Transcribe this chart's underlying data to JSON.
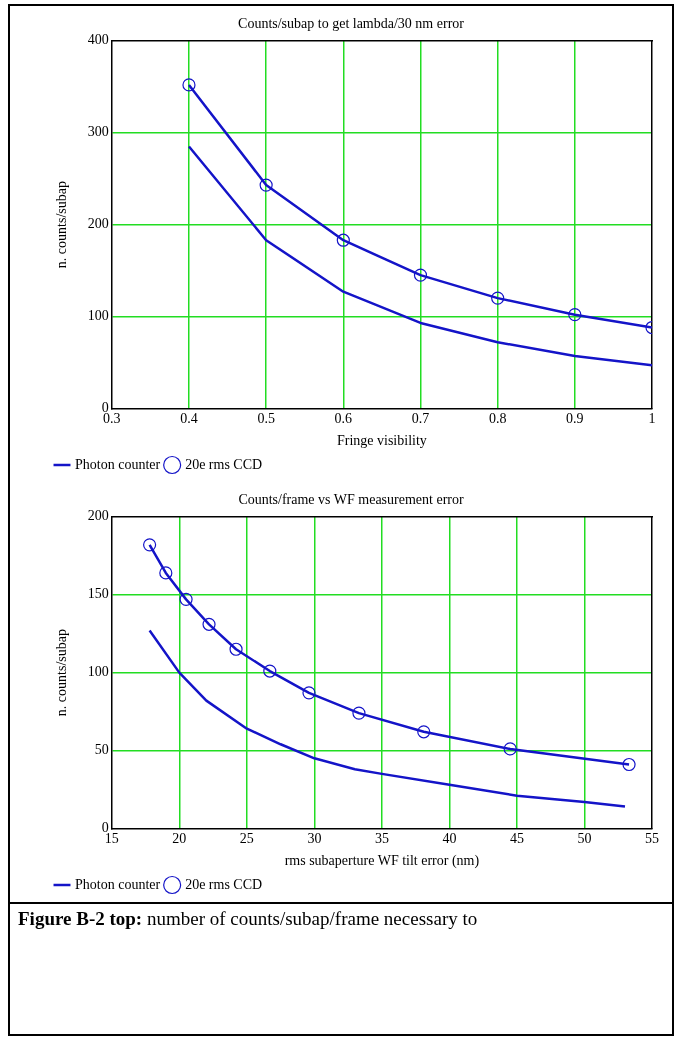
{
  "chart_data": [
    {
      "type": "line",
      "title": "Counts/subap to get lambda/30 nm error",
      "xlabel": "Fringe visibility",
      "ylabel": "n. counts/subap",
      "xlim": [
        0.3,
        1
      ],
      "xticks": [
        0.3,
        0.4,
        0.5,
        0.6,
        0.7,
        0.8,
        0.9,
        1
      ],
      "ylim": [
        0,
        400
      ],
      "yticks": [
        0,
        100,
        200,
        300,
        400
      ],
      "grid": true,
      "legend": "bottom",
      "line_style": "solid",
      "series": [
        {
          "name": "Photon counter",
          "color": "#1414c8",
          "marker": "none",
          "x": [
            0.4,
            0.5,
            0.6,
            0.7,
            0.8,
            0.9,
            1
          ],
          "values": [
            285,
            183,
            127,
            93,
            72,
            57,
            47
          ]
        },
        {
          "name": "20e rms CCD",
          "color": "#1414c8",
          "marker": "circle",
          "x": [
            0.4,
            0.5,
            0.6,
            0.7,
            0.8,
            0.9,
            1
          ],
          "values": [
            352,
            243,
            183,
            145,
            120,
            102,
            88
          ]
        }
      ]
    },
    {
      "type": "line",
      "title": "Counts/frame vs WF measurement error",
      "xlabel": "rms subaperture WF tilt error (nm)",
      "ylabel": "n. counts/subap",
      "xlim": [
        15,
        55
      ],
      "xticks": [
        15,
        20,
        25,
        30,
        35,
        40,
        45,
        50,
        55
      ],
      "ylim": [
        0,
        200
      ],
      "yticks": [
        0,
        50,
        100,
        150,
        200
      ],
      "grid": true,
      "legend": "bottom",
      "line_style": "solid",
      "annotations": [
        "Figure B-2 top: number of counts/subap/frame necessary to"
      ],
      "series": [
        {
          "name": "Photon counter",
          "color": "#1414c8",
          "marker": "none",
          "x": [
            17.8,
            20,
            22,
            25,
            27.5,
            30,
            33,
            35,
            40,
            45,
            50,
            53
          ],
          "values": [
            127,
            100,
            82,
            64,
            54,
            45,
            38,
            35,
            28,
            21,
            17,
            14
          ]
        },
        {
          "name": "20e rms CCD",
          "color": "#1414c8",
          "marker": "circle",
          "x": [
            17.8,
            19,
            20.5,
            22.2,
            24.2,
            26.7,
            29.6,
            33.3,
            38.1,
            44.5,
            53.3
          ],
          "values": [
            182,
            164,
            147,
            131,
            115,
            101,
            87,
            74,
            62,
            51,
            41
          ]
        }
      ]
    }
  ]
}
